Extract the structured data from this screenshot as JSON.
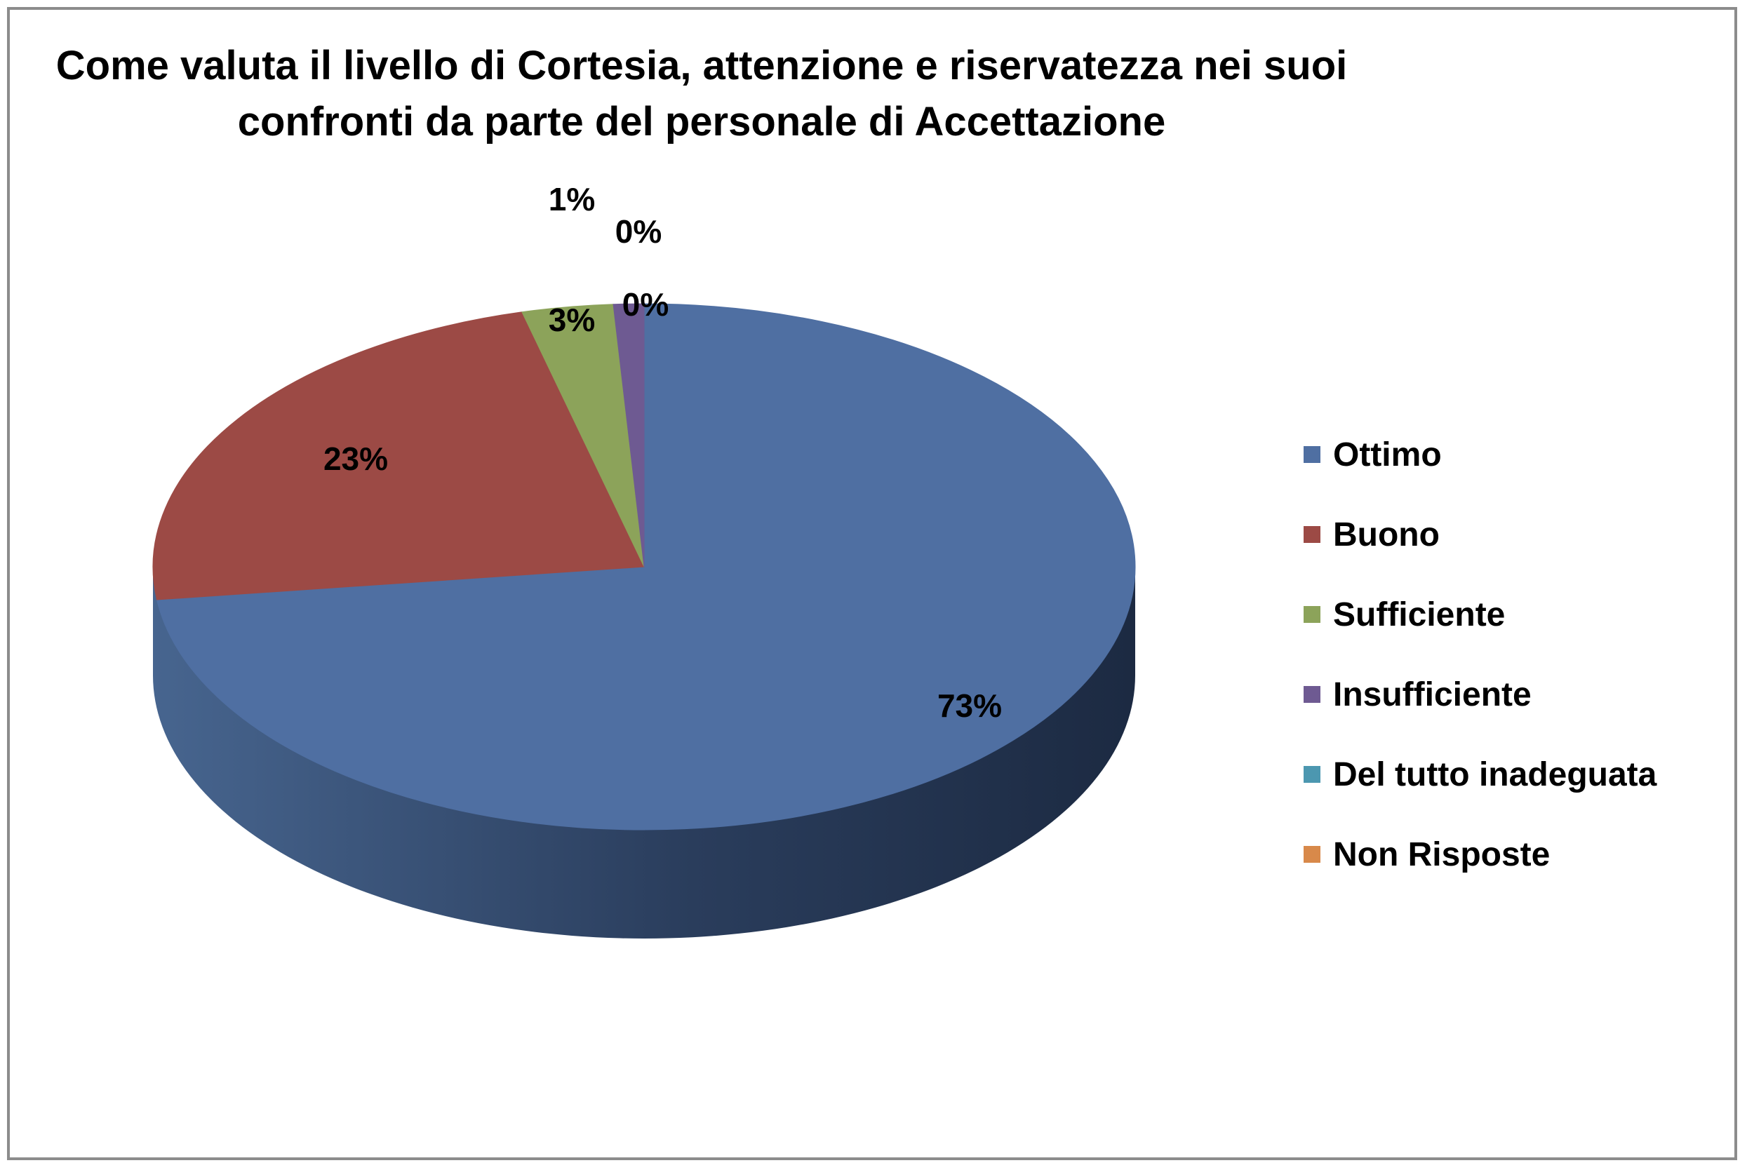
{
  "chart_data": {
    "type": "pie",
    "title": "Come valuta il livello di Cortesia, attenzione e riservatezza nei suoi\nconfronti da parte del personale di Accettazione",
    "legend_position": "right",
    "categories": [
      "Ottimo",
      "Buono",
      "Sufficiente",
      "Insufficiente",
      "Del tutto inadeguata",
      "Non Risposte"
    ],
    "values": [
      73,
      23,
      3,
      1,
      0,
      0
    ],
    "labels": [
      "73%",
      "23%",
      "3%",
      "1%",
      "0%",
      "0%"
    ],
    "colors": [
      "#4f6fa2",
      "#9c4a45",
      "#8ca35a",
      "#6e5a92",
      "#4c97b0",
      "#d8894a"
    ]
  }
}
